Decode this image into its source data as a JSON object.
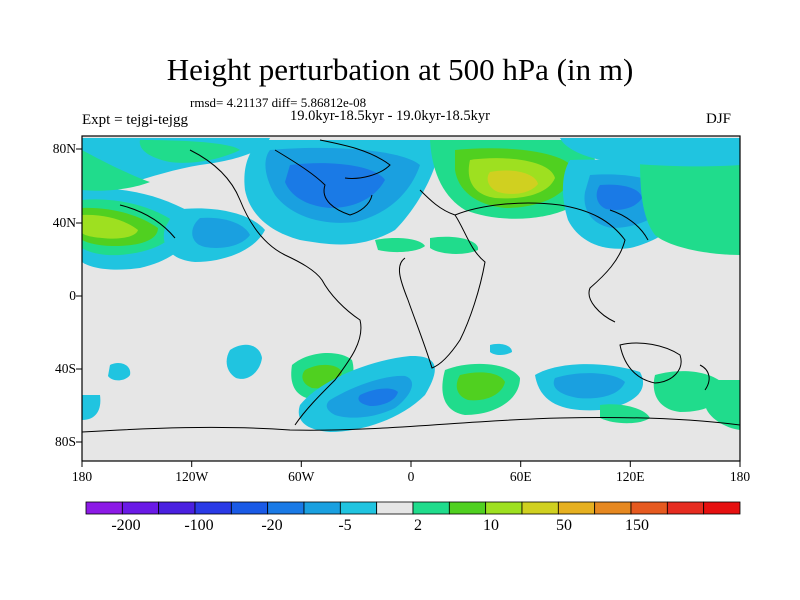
{
  "title": "Height perturbation at 500 hPa (in m)",
  "rmsd_line": "rmsd= 4.21137 diff= 5.86812e-08",
  "period_line": "19.0kyr-18.5kyr - 19.0kyr-18.5kyr",
  "expt_label": "Expt = tejgi-tejgg",
  "season_label": "DJF",
  "lat_ticks": [
    "80N",
    "40N",
    "0",
    "40S",
    "80S"
  ],
  "lon_ticks": [
    "180",
    "120W",
    "60W",
    "0",
    "60E",
    "120E",
    "180"
  ],
  "colorbar": {
    "colors": [
      "#8c1ae6",
      "#6a1ae6",
      "#4a20e0",
      "#2a3ae6",
      "#1a5ae6",
      "#1a7ae6",
      "#1aa0e0",
      "#20c4e0",
      "#e6e6e6",
      "#20dc8c",
      "#50d020",
      "#9ee020",
      "#d0d020",
      "#e6b020",
      "#e68820",
      "#e65a20",
      "#e62c20",
      "#e61010"
    ],
    "labels": [
      "-200",
      "-100",
      "-20",
      "-5",
      "2",
      "10",
      "50",
      "150"
    ]
  },
  "land_color": "#e6e6e6"
}
